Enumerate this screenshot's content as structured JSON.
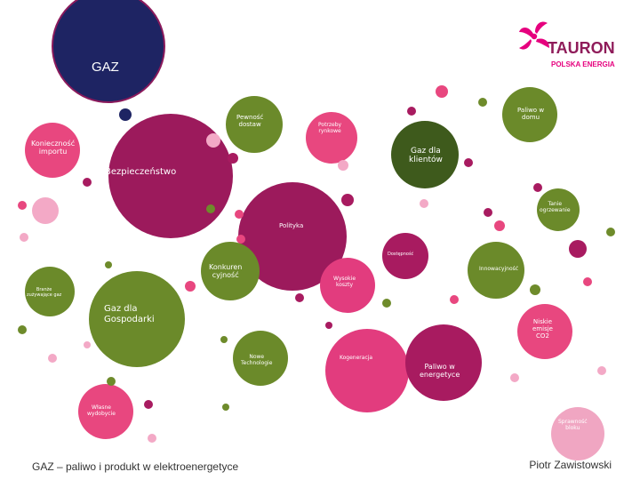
{
  "title": "GAZ",
  "logo": {
    "name": "TAURON",
    "subtitle": "POLSKA ENERGIA",
    "brand_color": "#8f1c5a",
    "accent_color": "#e6007e"
  },
  "nodes": {
    "bezpieczenstwo": "Bezpieczeństwo",
    "koniecznosc_importu": "Konieczność\nimportu",
    "pewnosc_dostaw": "Pewność\ndostaw",
    "potrzeby_rynkowe": "Potrzeby\nrynkowe",
    "gaz_dla_klientow": "Gaz dla\nklientów",
    "paliwo_w_domu": "Paliwo w\ndomu",
    "tanie_ogrzewanie": "Tanie\nogrzewanie",
    "polityka": "Polityka",
    "dostepnosc": "Dostępność",
    "konkurencyjnosc": "Konkuren\ncyjność",
    "innowacyjnosc": "Innowacyjność",
    "wysokie_koszty": "Wysokie\nkoszty",
    "branza": "Branże\nzużywające gaz",
    "gaz_dla_gospodarki": "Gaz dla\nGospodarki",
    "niskie_emisje": "Niskie\nemisje\nCO2",
    "nowe_technologie": "Nowe\nTechnologie",
    "kogeneracja": "Kogeneracja",
    "paliwo_w_energetyce": "Paliwo w\nenergetyce",
    "wlasne_wydobycie": "Własne\nwydobycie",
    "sprawnosc_bloku": "Sprawność\nbloku"
  },
  "footer": {
    "left": "GAZ – paliwo i produkt w elektroenergetyce",
    "right": "Piotr Zawistowski"
  },
  "colors": {
    "navy": "#1e2463",
    "magenta": "#9c1a5c",
    "pink": "#e23c7e",
    "green": "#6b8a2a",
    "dark_green": "#3e5a1c",
    "light_pink": "#f0a6c2"
  }
}
